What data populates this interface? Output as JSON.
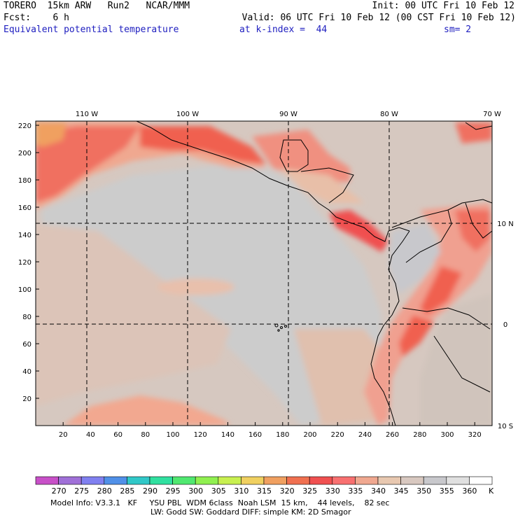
{
  "header": {
    "model_line": "TORERO  15km ARW   Run2   NCAR/MMM",
    "init": "Init: 00 UTC Fri 10 Feb 12",
    "fcst": "Fcst:    6 h",
    "valid": "Valid: 06 UTC Fri 10 Feb 12 (00 CST Fri 10 Feb 12)",
    "field": "Equivalent potential temperature",
    "level": "at k-index =  44",
    "smoothing": "sm= 2"
  },
  "map": {
    "x_ticks": [
      "20",
      "40",
      "60",
      "80",
      "100",
      "120",
      "140",
      "160",
      "180",
      "200",
      "220",
      "240",
      "260",
      "280",
      "300",
      "320"
    ],
    "y_ticks": [
      "220",
      "200",
      "180",
      "160",
      "140",
      "120",
      "100",
      "80",
      "60",
      "40",
      "20"
    ],
    "lon_labels": [
      "110 W",
      "100 W",
      "90 W",
      "80 W",
      "70 W"
    ],
    "lat_labels": [
      "10 N",
      "0",
      "10 S"
    ]
  },
  "colorbar": {
    "levels": [
      "270",
      "275",
      "280",
      "285",
      "290",
      "295",
      "300",
      "305",
      "310",
      "315",
      "320",
      "325",
      "330",
      "335",
      "340",
      "345",
      "350",
      "355",
      "360"
    ],
    "unit": "K",
    "colors": [
      "#c850c8",
      "#a070d8",
      "#8080f0",
      "#5090e8",
      "#30c8c8",
      "#30e0a0",
      "#50e870",
      "#90f050",
      "#c8f050",
      "#f0d060",
      "#f0a060",
      "#f07050",
      "#f05050",
      "#f87070",
      "#f0a890",
      "#e8c8b0",
      "#d8c8c0",
      "#c8c8cc",
      "#e0e0e0",
      "#ffffff"
    ]
  },
  "footer": {
    "line1": "Model Info: V3.3.1   KF     YSU PBL  WDM 6class  Noah LSM  15 km,    44 levels,    82 sec",
    "line2": "LW: Godd SW: Goddard DIFF: simple KM: 2D Smagor"
  }
}
